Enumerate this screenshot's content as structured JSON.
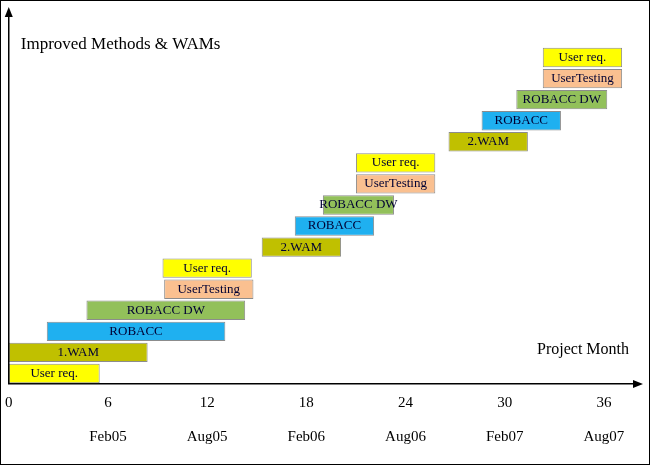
{
  "chart_data": {
    "type": "bar",
    "orientation": "horizontal",
    "title": "Improved Methods & WAMs",
    "x_label": "Project Month",
    "tasks": [
      {
        "name": "User req.",
        "start": 0,
        "end": 5.5,
        "color": "#ffff00"
      },
      {
        "name": "1.WAM",
        "start": 0,
        "end": 8.4,
        "color": "#c0c000"
      },
      {
        "name": "ROBACC",
        "start": 2.3,
        "end": 13.1,
        "color": "#1fb0f0"
      },
      {
        "name": "ROBACC DW",
        "start": 4.7,
        "end": 14.3,
        "color": "#92c05a"
      },
      {
        "name": "UserTesting",
        "start": 9.4,
        "end": 14.8,
        "color": "#fac090"
      },
      {
        "name": "User req.",
        "start": 9.3,
        "end": 14.7,
        "color": "#ffff00"
      },
      {
        "name": "2.WAM",
        "start": 15.3,
        "end": 20.1,
        "color": "#c0c000"
      },
      {
        "name": "ROBACC",
        "start": 17.3,
        "end": 22.1,
        "color": "#1fb0f0"
      },
      {
        "name": "ROBACC DW",
        "start": 19.0,
        "end": 23.3,
        "color": "#92c05a"
      },
      {
        "name": "UserTesting",
        "start": 21.0,
        "end": 25.8,
        "color": "#fac090"
      },
      {
        "name": "User req.",
        "start": 21.0,
        "end": 25.8,
        "color": "#ffff00"
      },
      {
        "name": "2.WAM",
        "start": 26.6,
        "end": 31.4,
        "color": "#c0c000"
      },
      {
        "name": "ROBACC",
        "start": 28.6,
        "end": 33.4,
        "color": "#1fb0f0"
      },
      {
        "name": "ROBACC DW",
        "start": 30.7,
        "end": 36.2,
        "color": "#92c05a"
      },
      {
        "name": "UserTesting",
        "start": 32.3,
        "end": 37.1,
        "color": "#fac090"
      },
      {
        "name": "User req.",
        "start": 32.3,
        "end": 37.1,
        "color": "#ffff00"
      }
    ],
    "xlim": [
      0,
      38
    ],
    "xticks": [
      0,
      6,
      12,
      18,
      24,
      30,
      36
    ],
    "x2ticks": [
      {
        "value": 6,
        "label": "Feb05"
      },
      {
        "value": 12,
        "label": "Aug05"
      },
      {
        "value": 18,
        "label": "Feb06"
      },
      {
        "value": 24,
        "label": "Aug06"
      },
      {
        "value": 30,
        "label": "Feb07"
      },
      {
        "value": 36,
        "label": "Aug07"
      }
    ],
    "tick_labels": "x",
    "grid": false
  }
}
